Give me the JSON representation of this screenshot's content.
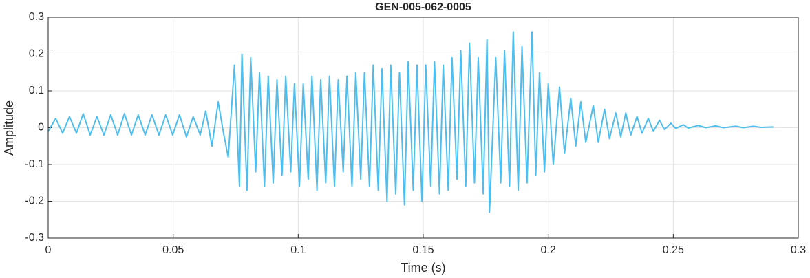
{
  "chart_data": {
    "type": "line",
    "title": "GEN-005-062-0005",
    "xlabel": "Time (s)",
    "ylabel": "Amplitude",
    "grid": true,
    "xlim": [
      0,
      0.3
    ],
    "ylim": [
      -0.3,
      0.3
    ],
    "xticks": [
      0,
      0.05,
      0.1,
      0.15,
      0.2,
      0.25,
      0.3
    ],
    "yticks": [
      -0.3,
      -0.2,
      -0.1,
      0,
      0.1,
      0.2,
      0.3
    ],
    "x": [
      0,
      0.003,
      0.0058,
      0.0085,
      0.0113,
      0.014,
      0.0168,
      0.0195,
      0.0223,
      0.025,
      0.0278,
      0.0305,
      0.0333,
      0.036,
      0.0388,
      0.0415,
      0.0443,
      0.047,
      0.0498,
      0.0525,
      0.0553,
      0.058,
      0.0608,
      0.063,
      0.0655,
      0.068,
      0.07,
      0.072,
      0.0745,
      0.0765,
      0.0775,
      0.0795,
      0.081,
      0.083,
      0.0845,
      0.0865,
      0.088,
      0.09,
      0.0915,
      0.0935,
      0.095,
      0.097,
      0.0985,
      0.1005,
      0.102,
      0.104,
      0.1055,
      0.1075,
      0.109,
      0.111,
      0.1125,
      0.1145,
      0.116,
      0.118,
      0.1195,
      0.1215,
      0.123,
      0.125,
      0.1265,
      0.1285,
      0.13,
      0.132,
      0.1335,
      0.1355,
      0.137,
      0.139,
      0.1405,
      0.1425,
      0.144,
      0.146,
      0.1475,
      0.1495,
      0.151,
      0.153,
      0.1545,
      0.1565,
      0.158,
      0.16,
      0.1615,
      0.1635,
      0.165,
      0.167,
      0.1685,
      0.1705,
      0.172,
      0.174,
      0.1755,
      0.1765,
      0.179,
      0.181,
      0.1825,
      0.1845,
      0.186,
      0.188,
      0.1895,
      0.1915,
      0.1935,
      0.195,
      0.1965,
      0.1985,
      0.2,
      0.202,
      0.2045,
      0.2065,
      0.209,
      0.211,
      0.213,
      0.215,
      0.218,
      0.22,
      0.2225,
      0.2245,
      0.227,
      0.229,
      0.231,
      0.233,
      0.2355,
      0.2375,
      0.24,
      0.242,
      0.2445,
      0.2465,
      0.249,
      0.251,
      0.254,
      0.256,
      0.26,
      0.263,
      0.267,
      0.27,
      0.275,
      0.278,
      0.282,
      0.285,
      0.29
    ],
    "series": [
      {
        "color": "#4dbeee",
        "values": [
          -0.01,
          0.025,
          -0.015,
          0.03,
          -0.015,
          0.038,
          -0.02,
          0.03,
          -0.02,
          0.035,
          -0.02,
          0.038,
          -0.02,
          0.035,
          -0.02,
          0.035,
          -0.02,
          0.035,
          -0.02,
          0.035,
          -0.025,
          0.03,
          -0.02,
          0.045,
          -0.05,
          0.07,
          -0.01,
          -0.08,
          0.17,
          -0.16,
          0.2,
          -0.17,
          0.19,
          -0.12,
          0.15,
          -0.16,
          0.14,
          -0.15,
          0.13,
          -0.13,
          0.14,
          -0.12,
          0.12,
          -0.16,
          0.12,
          -0.14,
          0.14,
          -0.17,
          0.13,
          -0.15,
          0.14,
          -0.16,
          0.13,
          -0.12,
          0.14,
          -0.16,
          0.15,
          -0.14,
          0.15,
          -0.16,
          0.17,
          -0.17,
          0.16,
          -0.2,
          0.17,
          -0.18,
          0.15,
          -0.21,
          0.18,
          -0.17,
          0.17,
          -0.2,
          0.17,
          -0.16,
          0.18,
          -0.18,
          0.17,
          -0.17,
          0.19,
          -0.14,
          0.21,
          -0.16,
          0.23,
          -0.15,
          0.19,
          -0.18,
          0.24,
          -0.23,
          0.19,
          -0.15,
          0.21,
          -0.16,
          0.26,
          -0.17,
          0.22,
          -0.15,
          0.26,
          -0.13,
          0.15,
          -0.12,
          0.12,
          -0.1,
          0.11,
          -0.07,
          0.08,
          -0.05,
          0.07,
          -0.04,
          0.06,
          -0.04,
          0.05,
          -0.03,
          0.04,
          -0.025,
          0.04,
          -0.02,
          0.03,
          -0.015,
          0.025,
          -0.01,
          0.02,
          -0.005,
          0.012,
          -0.002,
          0.008,
          -0.001,
          0.006,
          0,
          0.005,
          0,
          0.004,
          0,
          0.004,
          0.001,
          0.002
        ]
      }
    ]
  }
}
